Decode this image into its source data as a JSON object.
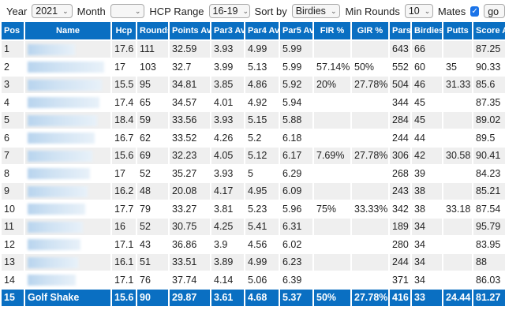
{
  "filters": {
    "year_label": "Year",
    "year": "2021",
    "month_label": "Month",
    "month": "",
    "hcp_label": "HCP Range",
    "hcp": "16-19",
    "sort_label": "Sort by",
    "sort": "Birdies",
    "min_rounds_label": "Min Rounds",
    "min_rounds": "10",
    "mates_label": "Mates",
    "mates_checked": true,
    "go": "go"
  },
  "columns": [
    "Pos",
    "Name",
    "Hcp",
    "Rounds",
    "Points Av",
    "Par3 Av",
    "Par4 Av",
    "Par5 Av",
    "FIR %",
    "GIR %",
    "Pars",
    "Birdies",
    "Putts",
    "Score Av"
  ],
  "rows": [
    [
      "1",
      "",
      "17.6",
      "111",
      "32.59",
      "3.93",
      "4.99",
      "5.99",
      "",
      "",
      "643",
      "66",
      "",
      "87.25"
    ],
    [
      "2",
      "",
      "17",
      "103",
      "32.7",
      "3.99",
      "5.13",
      "5.99",
      "57.14%",
      "50%",
      "552",
      "60",
      "35",
      "90.33"
    ],
    [
      "3",
      "",
      "15.5",
      "95",
      "34.81",
      "3.85",
      "4.86",
      "5.92",
      "20%",
      "27.78%",
      "504",
      "46",
      "31.33",
      "85.6"
    ],
    [
      "4",
      "",
      "17.4",
      "65",
      "34.57",
      "4.01",
      "4.92",
      "5.94",
      "",
      "",
      "344",
      "45",
      "",
      "87.35"
    ],
    [
      "5",
      "",
      "18.4",
      "59",
      "33.56",
      "3.93",
      "5.15",
      "5.88",
      "",
      "",
      "284",
      "45",
      "",
      "89.02"
    ],
    [
      "6",
      "",
      "16.7",
      "62",
      "33.52",
      "4.26",
      "5.2",
      "6.18",
      "",
      "",
      "244",
      "44",
      "",
      "89.5"
    ],
    [
      "7",
      "",
      "15.6",
      "69",
      "32.23",
      "4.05",
      "5.12",
      "6.17",
      "7.69%",
      "27.78%",
      "306",
      "42",
      "30.58",
      "90.41"
    ],
    [
      "8",
      "",
      "17",
      "52",
      "35.27",
      "3.93",
      "5",
      "6.29",
      "",
      "",
      "268",
      "39",
      "",
      "84.23"
    ],
    [
      "9",
      "",
      "16.2",
      "48",
      "20.08",
      "4.17",
      "4.95",
      "6.09",
      "",
      "",
      "243",
      "38",
      "",
      "85.21"
    ],
    [
      "10",
      "",
      "17.7",
      "79",
      "33.27",
      "3.81",
      "5.23",
      "5.96",
      "75%",
      "33.33%",
      "342",
      "38",
      "33.18",
      "87.54"
    ],
    [
      "11",
      "",
      "16",
      "52",
      "30.75",
      "4.25",
      "5.41",
      "6.31",
      "",
      "",
      "189",
      "34",
      "",
      "95.79"
    ],
    [
      "12",
      "",
      "17.1",
      "43",
      "36.86",
      "3.9",
      "4.56",
      "6.02",
      "",
      "",
      "280",
      "34",
      "",
      "83.95"
    ],
    [
      "13",
      "",
      "16.1",
      "51",
      "33.51",
      "3.89",
      "4.99",
      "6.23",
      "",
      "",
      "244",
      "34",
      "",
      "88"
    ],
    [
      "14",
      "",
      "17.1",
      "76",
      "37.74",
      "4.14",
      "5.06",
      "6.39",
      "",
      "",
      "371",
      "34",
      "",
      "86.03"
    ],
    [
      "15",
      "Golf Shake",
      "15.6",
      "90",
      "29.87",
      "3.61",
      "4.68",
      "5.37",
      "50%",
      "27.78%",
      "416",
      "33",
      "24.44",
      "81.27"
    ]
  ],
  "highlight_color": "#0a6fc2"
}
